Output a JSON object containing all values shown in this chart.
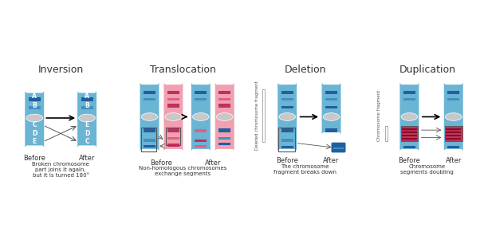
{
  "bg_color": "#ffffff",
  "border_color": "#cccccc",
  "section_titles": [
    "Inversion",
    "Translocation",
    "Deletion",
    "Duplication"
  ],
  "before_after_labels": [
    "Before",
    "After"
  ],
  "descriptions": [
    "Broken chromosome\npart joins it again,\nbut it is turned 180°",
    "Non-homologous chromosomes\nexchange segments",
    "The chromosome\nfragment breaks down",
    "Chromosome\nsegments doubling"
  ],
  "chrom_blue": "#6ab4d4",
  "chrom_pink": "#f0a0b0",
  "band_blue_dark": "#2060a0",
  "band_blue_mid": "#4090c0",
  "band_pink_dark": "#c03060",
  "band_pink_mid": "#e06080",
  "centromere_color": "#c8c8c8",
  "text_color": "#333333",
  "arrow_color": "#333333",
  "box_color": "#666666"
}
